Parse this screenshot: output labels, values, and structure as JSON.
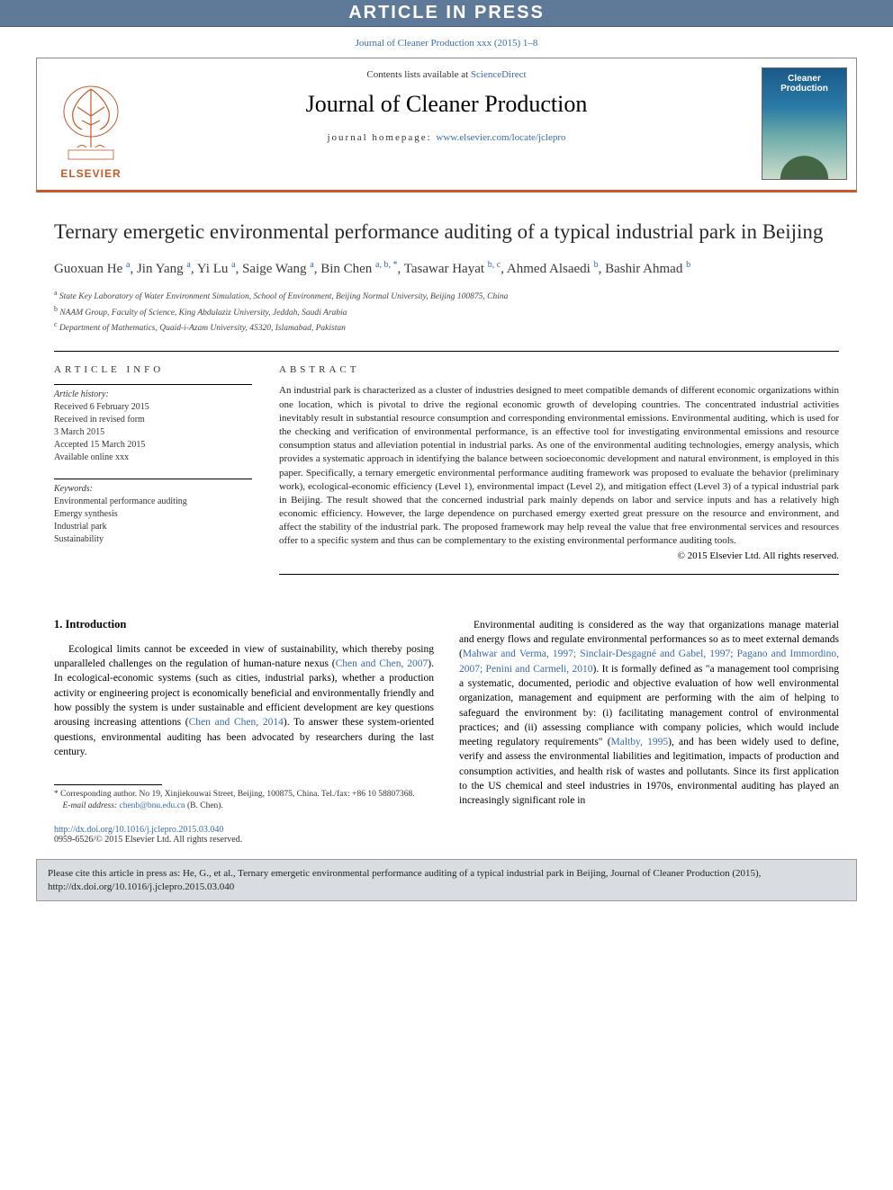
{
  "header_band": "ARTICLE IN PRESS",
  "journal_ref": "Journal of Cleaner Production xxx (2015) 1–8",
  "contents_line_pre": "Contents lists available at ",
  "contents_line_link": "ScienceDirect",
  "journal_name": "Journal of Cleaner Production",
  "homepage_label": "journal homepage: ",
  "homepage_url": "www.elsevier.com/locate/jclepro",
  "elsevier_label": "ELSEVIER",
  "cover_title_line1": "Cleaner",
  "cover_title_line2": "Production",
  "title": "Ternary emergetic environmental performance auditing of a typical industrial park in Beijing",
  "authors": [
    {
      "name": "Guoxuan He",
      "aff": "a"
    },
    {
      "name": "Jin Yang",
      "aff": "a"
    },
    {
      "name": "Yi Lu",
      "aff": "a"
    },
    {
      "name": "Saige Wang",
      "aff": "a"
    },
    {
      "name": "Bin Chen",
      "aff": "a, b, *"
    },
    {
      "name": "Tasawar Hayat",
      "aff": "b, c"
    },
    {
      "name": "Ahmed Alsaedi",
      "aff": "b"
    },
    {
      "name": "Bashir Ahmad",
      "aff": "b"
    }
  ],
  "affiliations": {
    "a": "State Key Laboratory of Water Environment Simulation, School of Environment, Beijing Normal University, Beijing 100875, China",
    "b": "NAAM Group, Faculty of Science, King Abdulaziz University, Jeddah, Saudi Arabia",
    "c": "Department of Mathematics, Quaid-i-Azam University, 45320, Islamabad, Pakistan"
  },
  "article_info_head": "ARTICLE INFO",
  "abstract_head": "ABSTRACT",
  "history_label": "Article history:",
  "history_lines": [
    "Received 6 February 2015",
    "Received in revised form",
    "3 March 2015",
    "Accepted 15 March 2015",
    "Available online xxx"
  ],
  "keywords_label": "Keywords:",
  "keywords": [
    "Environmental performance auditing",
    "Emergy synthesis",
    "Industrial park",
    "Sustainability"
  ],
  "abstract_text": "An industrial park is characterized as a cluster of industries designed to meet compatible demands of different economic organizations within one location, which is pivotal to drive the regional economic growth of developing countries. The concentrated industrial activities inevitably result in substantial resource consumption and corresponding environmental emissions. Environmental auditing, which is used for the checking and verification of environmental performance, is an effective tool for investigating environmental emissions and resource consumption status and alleviation potential in industrial parks. As one of the environmental auditing technologies, emergy analysis, which provides a systematic approach in identifying the balance between socioeconomic development and natural environment, is employed in this paper. Specifically, a ternary emergetic environmental performance auditing framework was proposed to evaluate the behavior (preliminary work), ecological-economic efficiency (Level 1), environmental impact (Level 2), and mitigation effect (Level 3) of a typical industrial park in Beijing. The result showed that the concerned industrial park mainly depends on labor and service inputs and has a relatively high economic efficiency. However, the large dependence on purchased emergy exerted great pressure on the resource and environment, and affect the stability of the industrial park. The proposed framework may help reveal the value that free environmental services and resources offer to a specific system and thus can be complementary to the existing environmental performance auditing tools.",
  "copyright": "© 2015 Elsevier Ltd. All rights reserved.",
  "intro_head": "1. Introduction",
  "intro_p1_a": "Ecological limits cannot be exceeded in view of sustainability, which thereby posing unparalleled challenges on the regulation of human-nature nexus (",
  "intro_p1_cite1": "Chen and Chen, 2007",
  "intro_p1_b": "). In ecological-economic systems (such as cities, industrial parks), whether a production activity or engineering project is economically beneficial and environmentally friendly and how possibly the system is under sustainable and efficient development are key questions arousing increasing attentions (",
  "intro_p1_cite2": "Chen and Chen, 2014",
  "intro_p1_c": "). To answer these system-oriented questions, environmental auditing has been advocated by researchers during the last century.",
  "intro_p2_a": "Environmental auditing is considered as the way that organizations manage material and energy flows and regulate environmental performances so as to meet external demands (",
  "intro_p2_cite1": "Mahwar and Verma, 1997; Sinclair-Desgagné and Gabel, 1997; Pagano and Immordino, 2007; Penini and Carmeli, 2010",
  "intro_p2_b": "). It is formally defined as \"a management tool comprising a systematic, documented, periodic and objective evaluation of how well environmental organization, management and equipment are performing with the aim of helping to safeguard the environment by: (i) facilitating management control of environmental practices; and (ii) assessing compliance with company policies, which would include meeting regulatory requirements\" (",
  "intro_p2_cite2": "Maltby, 1995",
  "intro_p2_c": "), and has been widely used to define, verify and assess the environmental liabilities and legitimation, impacts of production and consumption activities, and health risk of wastes and pollutants. Since its first application to the US chemical and steel industries in 1970s, environmental auditing has played an increasingly significant role in",
  "corr_note": "* Corresponding author. No 19, Xinjiekouwai Street, Beijing, 100875, China. Tel./fax: +86 10 58807368.",
  "email_label": "E-mail address: ",
  "email": "chenb@bnu.edu.cn",
  "email_name": " (B. Chen).",
  "doi_url": "http://dx.doi.org/10.1016/j.jclepro.2015.03.040",
  "doi_copy": "0959-6526/© 2015 Elsevier Ltd. All rights reserved.",
  "cite_box": "Please cite this article in press as: He, G., et al., Ternary emergetic environmental performance auditing of a typical industrial park in Beijing, Journal of Cleaner Production (2015), http://dx.doi.org/10.1016/j.jclepro.2015.03.040",
  "colors": {
    "band_bg": "#5f7a99",
    "accent": "#c55a2a",
    "link": "#3a6aa8",
    "citebox_bg": "#d9dde2"
  }
}
